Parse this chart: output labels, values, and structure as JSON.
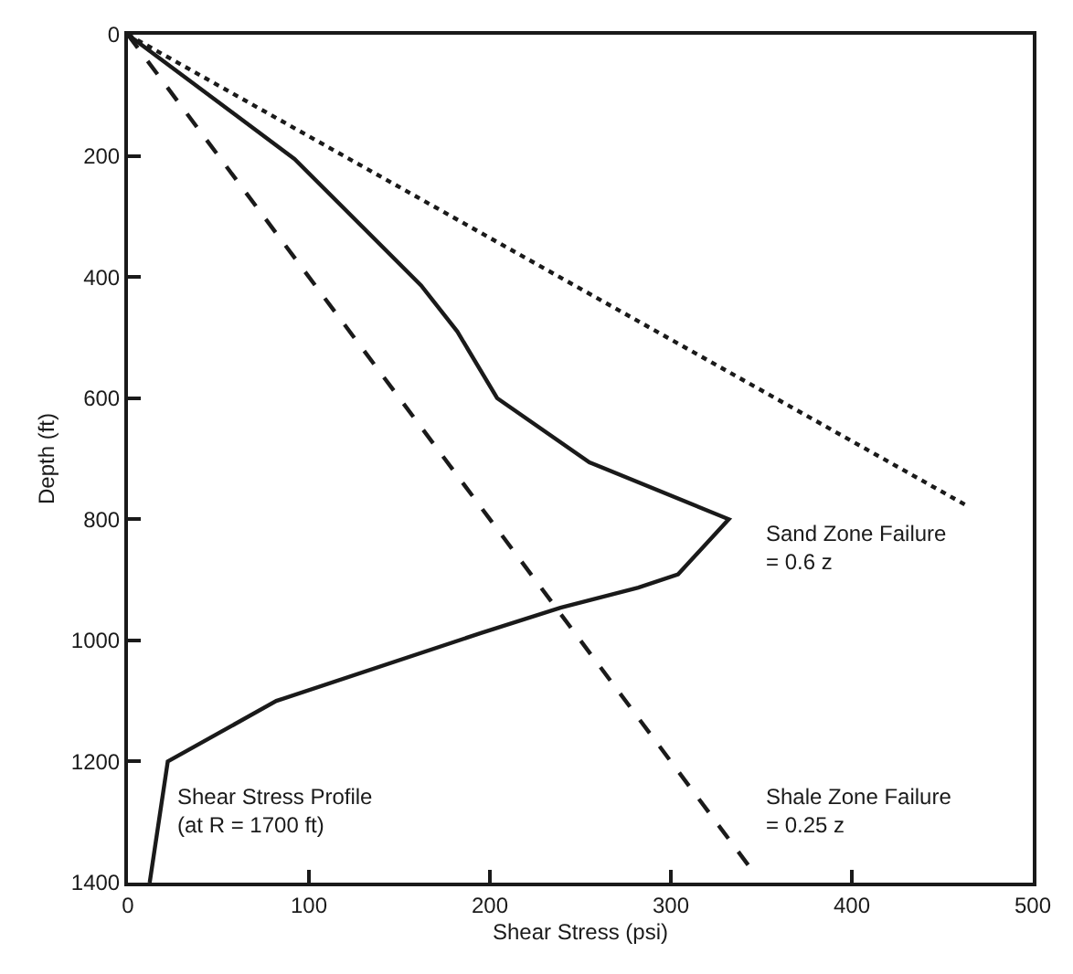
{
  "chart_data": {
    "type": "line",
    "xlabel": "Shear Stress (psi)",
    "ylabel": "Depth (ft)",
    "xlim": [
      0,
      500
    ],
    "xticks": [
      0,
      100,
      200,
      300,
      400,
      500
    ],
    "ylim": [
      1400,
      0
    ],
    "yticks": [
      0,
      200,
      400,
      600,
      800,
      1000,
      1200,
      1400
    ],
    "marker": "none",
    "series": [
      {
        "color": "#1a1a1a",
        "line_style": "solid",
        "x": [
          0,
          92,
          162,
          182,
          204,
          255,
          332,
          304,
          282,
          239,
          195,
          82,
          22,
          12
        ],
        "values": [
          0,
          205,
          414,
          490,
          600,
          706,
          800,
          891,
          913,
          946,
          988,
          1100,
          1200,
          1400
        ]
      },
      {
        "color": "#1a1a1a",
        "line_style": "dotted",
        "x": [
          0,
          465
        ],
        "values": [
          0,
          780
        ]
      },
      {
        "color": "#1a1a1a",
        "line_style": "dashed",
        "x": [
          0,
          345
        ],
        "values": [
          0,
          1380
        ]
      }
    ],
    "annotations": [
      "Sand Zone Failure\n= 0.6 z",
      "Shale Zone Failure\n= 0.25 z",
      "Shear Stress Profile\n(at R = 1700 ft)"
    ]
  }
}
